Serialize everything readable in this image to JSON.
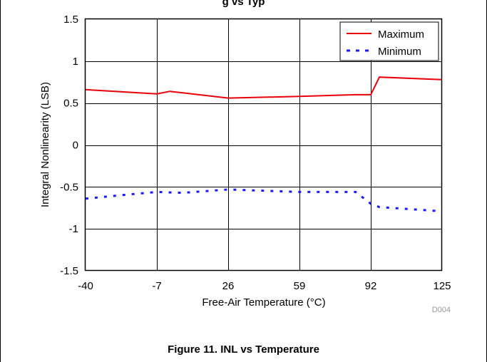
{
  "header_fragment": "g vs Typ",
  "chart_data": {
    "type": "line",
    "title": "",
    "xlabel": "Free-Air Temperature (°C)",
    "ylabel": "Integral Nonlinearity (LSB)",
    "xlim": [
      -40,
      125
    ],
    "ylim": [
      -1.5,
      1.5
    ],
    "xticks": [
      -40,
      -7,
      26,
      59,
      92,
      125
    ],
    "xtick_labels": [
      "-40",
      "-7",
      "26",
      "59",
      "92",
      "125"
    ],
    "yticks": [
      -1.5,
      -1,
      -0.5,
      0,
      0.5,
      1,
      1.5
    ],
    "ytick_labels": [
      "-1.5",
      "-1",
      "-0.5",
      "0",
      "0.5",
      "1",
      "1.5"
    ],
    "grid": true,
    "legend_position": "top-right",
    "figure_id": "D004",
    "series": [
      {
        "name": "Maximum",
        "color": "#e8000b",
        "style": "solid",
        "x": [
          -40,
          -7,
          -1,
          26,
          59,
          85,
          92,
          96,
          125
        ],
        "y": [
          0.66,
          0.61,
          0.64,
          0.56,
          0.58,
          0.6,
          0.6,
          0.81,
          0.78
        ]
      },
      {
        "name": "Minimum",
        "color": "#1a1aff",
        "style": "dotted",
        "x": [
          -40,
          -20,
          -7,
          5,
          26,
          59,
          85,
          92,
          96,
          125
        ],
        "y": [
          -0.64,
          -0.59,
          -0.56,
          -0.57,
          -0.53,
          -0.56,
          -0.56,
          -0.7,
          -0.74,
          -0.79
        ]
      }
    ]
  },
  "caption": "Figure 11. INL vs Temperature"
}
